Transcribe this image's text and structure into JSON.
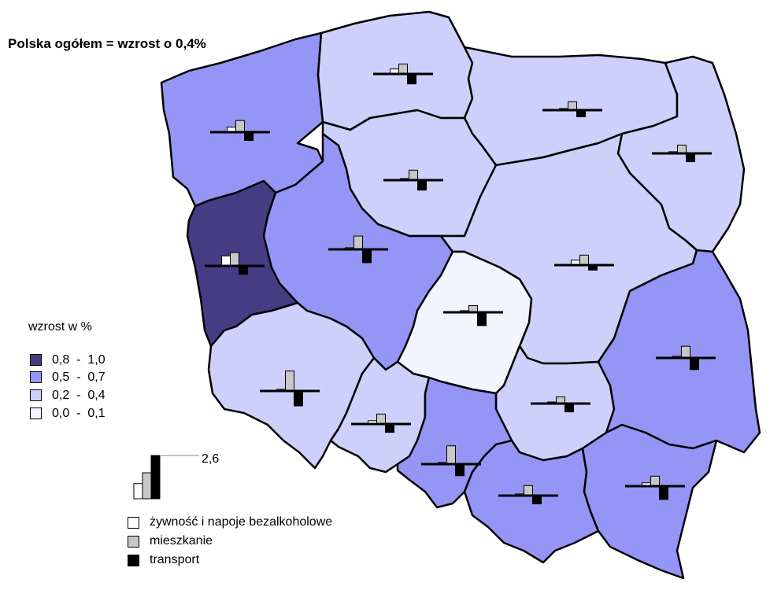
{
  "title": "Polska ogółem = wzrost o 0,4%",
  "legend": {
    "title": "wzrost w %",
    "classes": [
      {
        "label": "0,8  -  1,0",
        "color": "#453c84"
      },
      {
        "label": "0,5  -  0,7",
        "color": "#9595f5"
      },
      {
        "label": "0,2  -  0,4",
        "color": "#cdd0fa"
      },
      {
        "label": "0,0  -  0,1",
        "color": "#f2f4fe"
      }
    ]
  },
  "scale": {
    "label": "2,6",
    "value": 2.6
  },
  "categories": [
    {
      "label": "żywność i napoje bezalkoholowe",
      "color": "#ffffff"
    },
    {
      "label": "mieszkanie",
      "color": "#c8c8c8"
    },
    {
      "label": "transport",
      "color": "#000000"
    }
  ],
  "regions": [
    {
      "id": "zachodniopomorskie",
      "class": 1,
      "values": [
        0.3,
        0.7,
        -0.5
      ]
    },
    {
      "id": "pomorskie",
      "class": 2,
      "values": [
        0.3,
        0.6,
        -0.6
      ]
    },
    {
      "id": "warminsko-mazurskie",
      "class": 2,
      "values": [
        0.1,
        0.5,
        -0.4
      ]
    },
    {
      "id": "podlaskie",
      "class": 2,
      "values": [
        0.1,
        0.5,
        -0.5
      ]
    },
    {
      "id": "kujawsko-pomorskie",
      "class": 2,
      "values": [
        0.0,
        0.6,
        -0.6
      ]
    },
    {
      "id": "lubuskie",
      "class": 0,
      "values": [
        0.6,
        0.8,
        -0.5
      ]
    },
    {
      "id": "wielkopolskie",
      "class": 1,
      "values": [
        0.1,
        0.8,
        -0.8
      ]
    },
    {
      "id": "mazowieckie",
      "class": 2,
      "values": [
        0.3,
        0.6,
        -0.3
      ]
    },
    {
      "id": "lodzkie",
      "class": 3,
      "values": [
        0.1,
        0.4,
        -0.8
      ]
    },
    {
      "id": "dolnoslaskie",
      "class": 2,
      "values": [
        0.1,
        1.2,
        -0.9
      ]
    },
    {
      "id": "opolskie",
      "class": 2,
      "values": [
        0.2,
        0.6,
        -0.5
      ]
    },
    {
      "id": "swietokrzyskie",
      "class": 2,
      "values": [
        0.0,
        0.4,
        -0.5
      ]
    },
    {
      "id": "lubelskie",
      "class": 1,
      "values": [
        0.1,
        0.7,
        -0.7
      ]
    },
    {
      "id": "slaskie",
      "class": 1,
      "values": [
        0.1,
        1.1,
        -0.7
      ]
    },
    {
      "id": "malopolskie",
      "class": 1,
      "values": [
        0.1,
        0.6,
        -0.5
      ]
    },
    {
      "id": "podkarpackie",
      "class": 1,
      "values": [
        0.2,
        0.6,
        -0.8
      ]
    }
  ]
}
